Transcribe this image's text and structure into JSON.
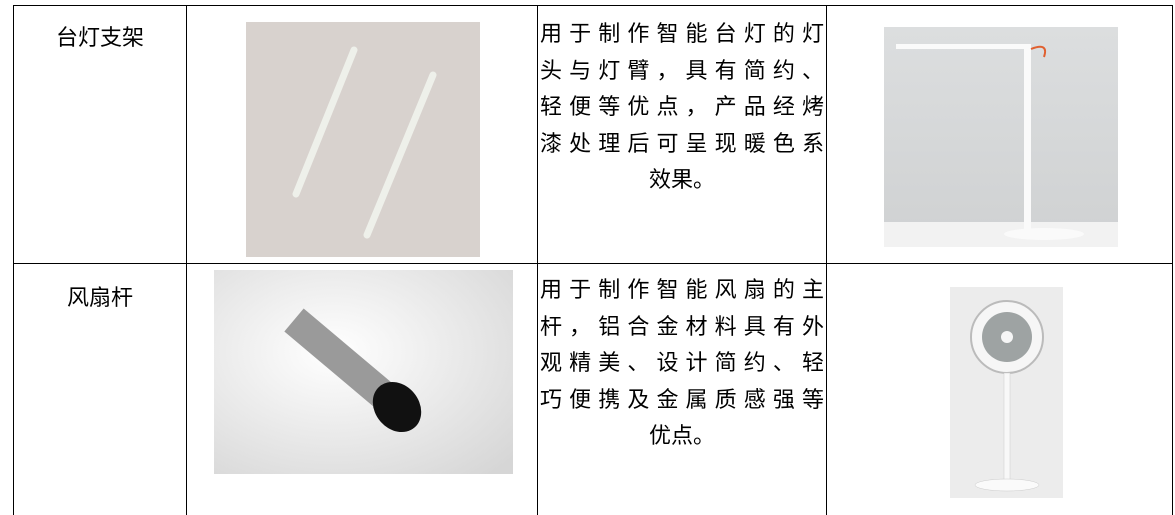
{
  "table": {
    "rows": [
      {
        "name": "台灯支架",
        "description_lines": [
          "用于制作智能台灯的灯",
          "头与灯臂，具有简约、",
          "轻便等优点，产品经烤",
          "漆处理后可呈现暖色系",
          "效果。"
        ]
      },
      {
        "name": "风扇杆",
        "description_lines": [
          "用于制作智能风扇的主",
          "杆，铝合金材料具有外",
          "观精美、设计简约、轻",
          "巧便携及金属质感强等",
          "优点。"
        ]
      }
    ]
  }
}
